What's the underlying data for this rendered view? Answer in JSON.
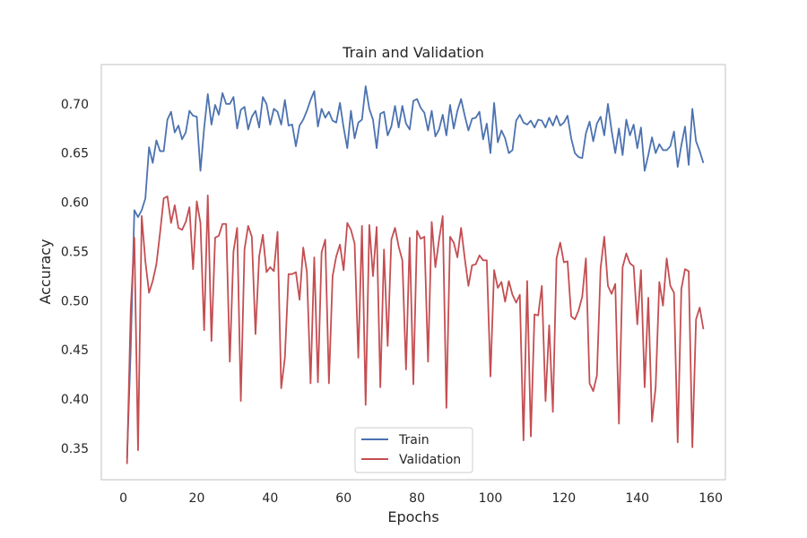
{
  "chart_data": {
    "type": "line",
    "title": "Train and Validation",
    "xlabel": "Epochs",
    "ylabel": "Accuracy",
    "xlim": [
      -6,
      164
    ],
    "ylim": [
      0.318,
      0.74
    ],
    "xticks": [
      0,
      20,
      40,
      60,
      80,
      100,
      120,
      140,
      160
    ],
    "yticks": [
      0.35,
      0.4,
      0.45,
      0.5,
      0.55,
      0.6,
      0.65,
      0.7
    ],
    "ytick_labels": [
      "0.35",
      "0.40",
      "0.45",
      "0.50",
      "0.55",
      "0.60",
      "0.65",
      "0.70"
    ],
    "grid": false,
    "legend_position": "lower-center",
    "x_start": 1,
    "series": [
      {
        "name": "Train",
        "color": "#4c72b0",
        "values": [
          0.34,
          0.45,
          0.592,
          0.585,
          0.592,
          0.604,
          0.656,
          0.64,
          0.663,
          0.652,
          0.652,
          0.684,
          0.692,
          0.671,
          0.678,
          0.664,
          0.671,
          0.693,
          0.688,
          0.687,
          0.632,
          0.675,
          0.71,
          0.679,
          0.699,
          0.689,
          0.711,
          0.7,
          0.7,
          0.707,
          0.675,
          0.694,
          0.697,
          0.674,
          0.687,
          0.693,
          0.676,
          0.707,
          0.7,
          0.679,
          0.695,
          0.692,
          0.679,
          0.704,
          0.678,
          0.679,
          0.657,
          0.678,
          0.684,
          0.693,
          0.704,
          0.713,
          0.677,
          0.695,
          0.686,
          0.692,
          0.683,
          0.681,
          0.701,
          0.676,
          0.655,
          0.693,
          0.665,
          0.681,
          0.684,
          0.718,
          0.695,
          0.684,
          0.655,
          0.69,
          0.692,
          0.668,
          0.677,
          0.698,
          0.676,
          0.698,
          0.68,
          0.674,
          0.703,
          0.705,
          0.696,
          0.691,
          0.673,
          0.693,
          0.667,
          0.674,
          0.689,
          0.668,
          0.699,
          0.675,
          0.693,
          0.705,
          0.688,
          0.673,
          0.685,
          0.686,
          0.692,
          0.664,
          0.68,
          0.65,
          0.701,
          0.661,
          0.673,
          0.665,
          0.65,
          0.653,
          0.683,
          0.689,
          0.681,
          0.679,
          0.683,
          0.676,
          0.684,
          0.683,
          0.676,
          0.686,
          0.678,
          0.688,
          0.678,
          0.681,
          0.688,
          0.665,
          0.65,
          0.646,
          0.645,
          0.67,
          0.682,
          0.662,
          0.68,
          0.687,
          0.668,
          0.7,
          0.673,
          0.65,
          0.675,
          0.648,
          0.684,
          0.668,
          0.679,
          0.655,
          0.676,
          0.632,
          0.648,
          0.666,
          0.65,
          0.659,
          0.653,
          0.653,
          0.657,
          0.672,
          0.636,
          0.658,
          0.677,
          0.638,
          0.695,
          0.662,
          0.652,
          0.64
        ]
      },
      {
        "name": "Validation",
        "color": "#c44e52",
        "values": [
          0.334,
          0.49,
          0.564,
          0.348,
          0.586,
          0.54,
          0.508,
          0.52,
          0.537,
          0.569,
          0.604,
          0.606,
          0.579,
          0.597,
          0.574,
          0.572,
          0.58,
          0.595,
          0.532,
          0.601,
          0.579,
          0.47,
          0.607,
          0.459,
          0.564,
          0.566,
          0.578,
          0.578,
          0.438,
          0.55,
          0.574,
          0.398,
          0.552,
          0.576,
          0.565,
          0.466,
          0.545,
          0.567,
          0.529,
          0.534,
          0.53,
          0.57,
          0.411,
          0.442,
          0.527,
          0.527,
          0.529,
          0.501,
          0.554,
          0.529,
          0.416,
          0.544,
          0.417,
          0.549,
          0.562,
          0.416,
          0.525,
          0.545,
          0.557,
          0.531,
          0.579,
          0.572,
          0.558,
          0.442,
          0.576,
          0.394,
          0.577,
          0.525,
          0.575,
          0.412,
          0.552,
          0.454,
          0.562,
          0.574,
          0.555,
          0.541,
          0.43,
          0.564,
          0.415,
          0.571,
          0.563,
          0.565,
          0.438,
          0.58,
          0.534,
          0.562,
          0.586,
          0.391,
          0.565,
          0.559,
          0.544,
          0.574,
          0.543,
          0.515,
          0.536,
          0.537,
          0.546,
          0.541,
          0.541,
          0.423,
          0.531,
          0.513,
          0.519,
          0.499,
          0.52,
          0.506,
          0.498,
          0.506,
          0.358,
          0.52,
          0.362,
          0.486,
          0.485,
          0.515,
          0.398,
          0.475,
          0.387,
          0.543,
          0.559,
          0.539,
          0.54,
          0.484,
          0.481,
          0.49,
          0.504,
          0.543,
          0.416,
          0.408,
          0.424,
          0.533,
          0.565,
          0.515,
          0.507,
          0.517,
          0.375,
          0.534,
          0.548,
          0.538,
          0.535,
          0.476,
          0.531,
          0.412,
          0.503,
          0.377,
          0.412,
          0.519,
          0.495,
          0.543,
          0.515,
          0.508,
          0.356,
          0.512,
          0.532,
          0.53,
          0.351,
          0.481,
          0.493,
          0.471
        ]
      }
    ]
  }
}
